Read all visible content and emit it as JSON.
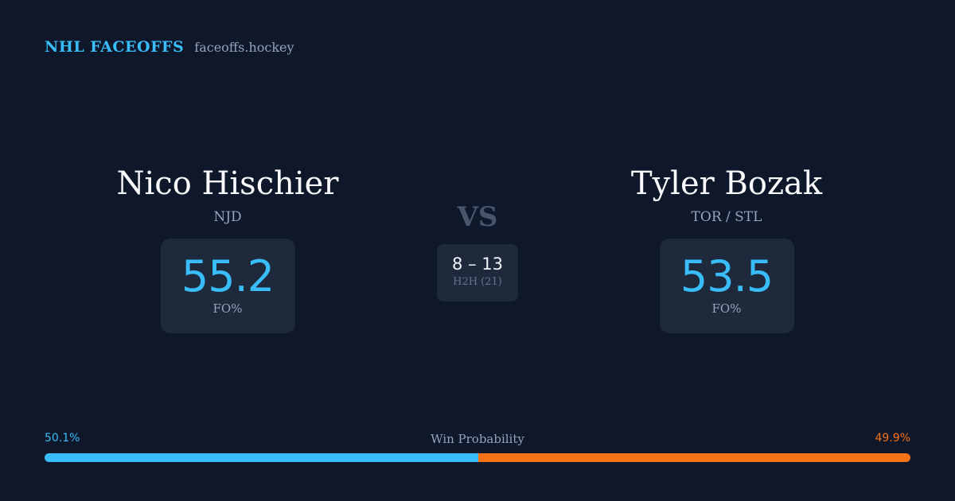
{
  "brand": {
    "title": "NHL FACEOFFS",
    "site": "faceoffs.hockey"
  },
  "players": {
    "left": {
      "name": "Nico Hischier",
      "team": "NJD",
      "fo_pct": "55.2",
      "stat_label": "FO%"
    },
    "right": {
      "name": "Tyler Bozak",
      "team": "TOR / STL",
      "fo_pct": "53.5",
      "stat_label": "FO%"
    }
  },
  "matchup": {
    "vs_label": "VS",
    "h2h_score": "8 – 13",
    "h2h_label": "H2H (21)"
  },
  "win_probability": {
    "label": "Win Probability",
    "left_text": "50.1%",
    "right_text": "49.9%",
    "left_value": 50.1,
    "right_value": 49.9
  },
  "colors": {
    "background": "#0f172a",
    "card": "#1e293b",
    "accent_left": "#38bdf8",
    "accent_right": "#f97316",
    "muted": "#94a3b8"
  }
}
